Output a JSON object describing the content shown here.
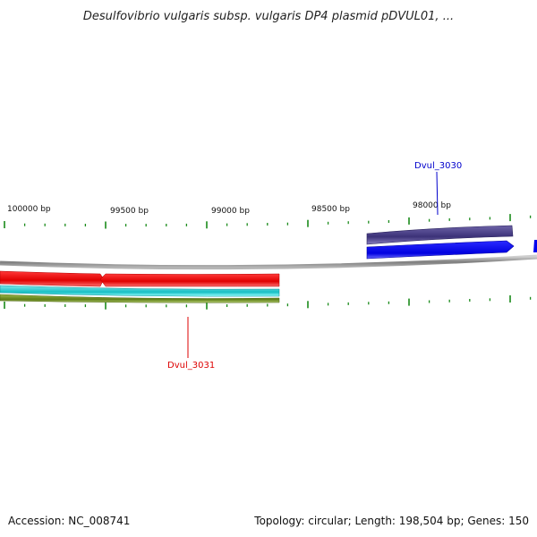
{
  "title": "Desulfovibrio vulgaris subsp. vulgaris DP4 plasmid pDVUL01, ...",
  "footer": {
    "accession": "Accession: NC_008741",
    "summary": "Topology: circular; Length: 198,504 bp; Genes: 150"
  },
  "ruler": {
    "labels": [
      "100000 bp",
      "99500 bp",
      "99000 bp",
      "98500 bp",
      "98000 bp"
    ],
    "tick_color": "#1a8a1a"
  },
  "genes": {
    "dvul_3030": {
      "label": "Dvul_3030",
      "color": "#0000ee",
      "strand": "forward"
    },
    "dvul_3031": {
      "label": "Dvul_3031",
      "color": "#e00000",
      "strand": "reverse"
    }
  },
  "tracks": {
    "backbone_color": "#8a8a8a",
    "purple_feature_color": "#4a3f86",
    "red_feature_color": "#ee1111",
    "cyan_feature_color": "#20c8cc",
    "olive_feature_color": "#6b8a1e"
  }
}
